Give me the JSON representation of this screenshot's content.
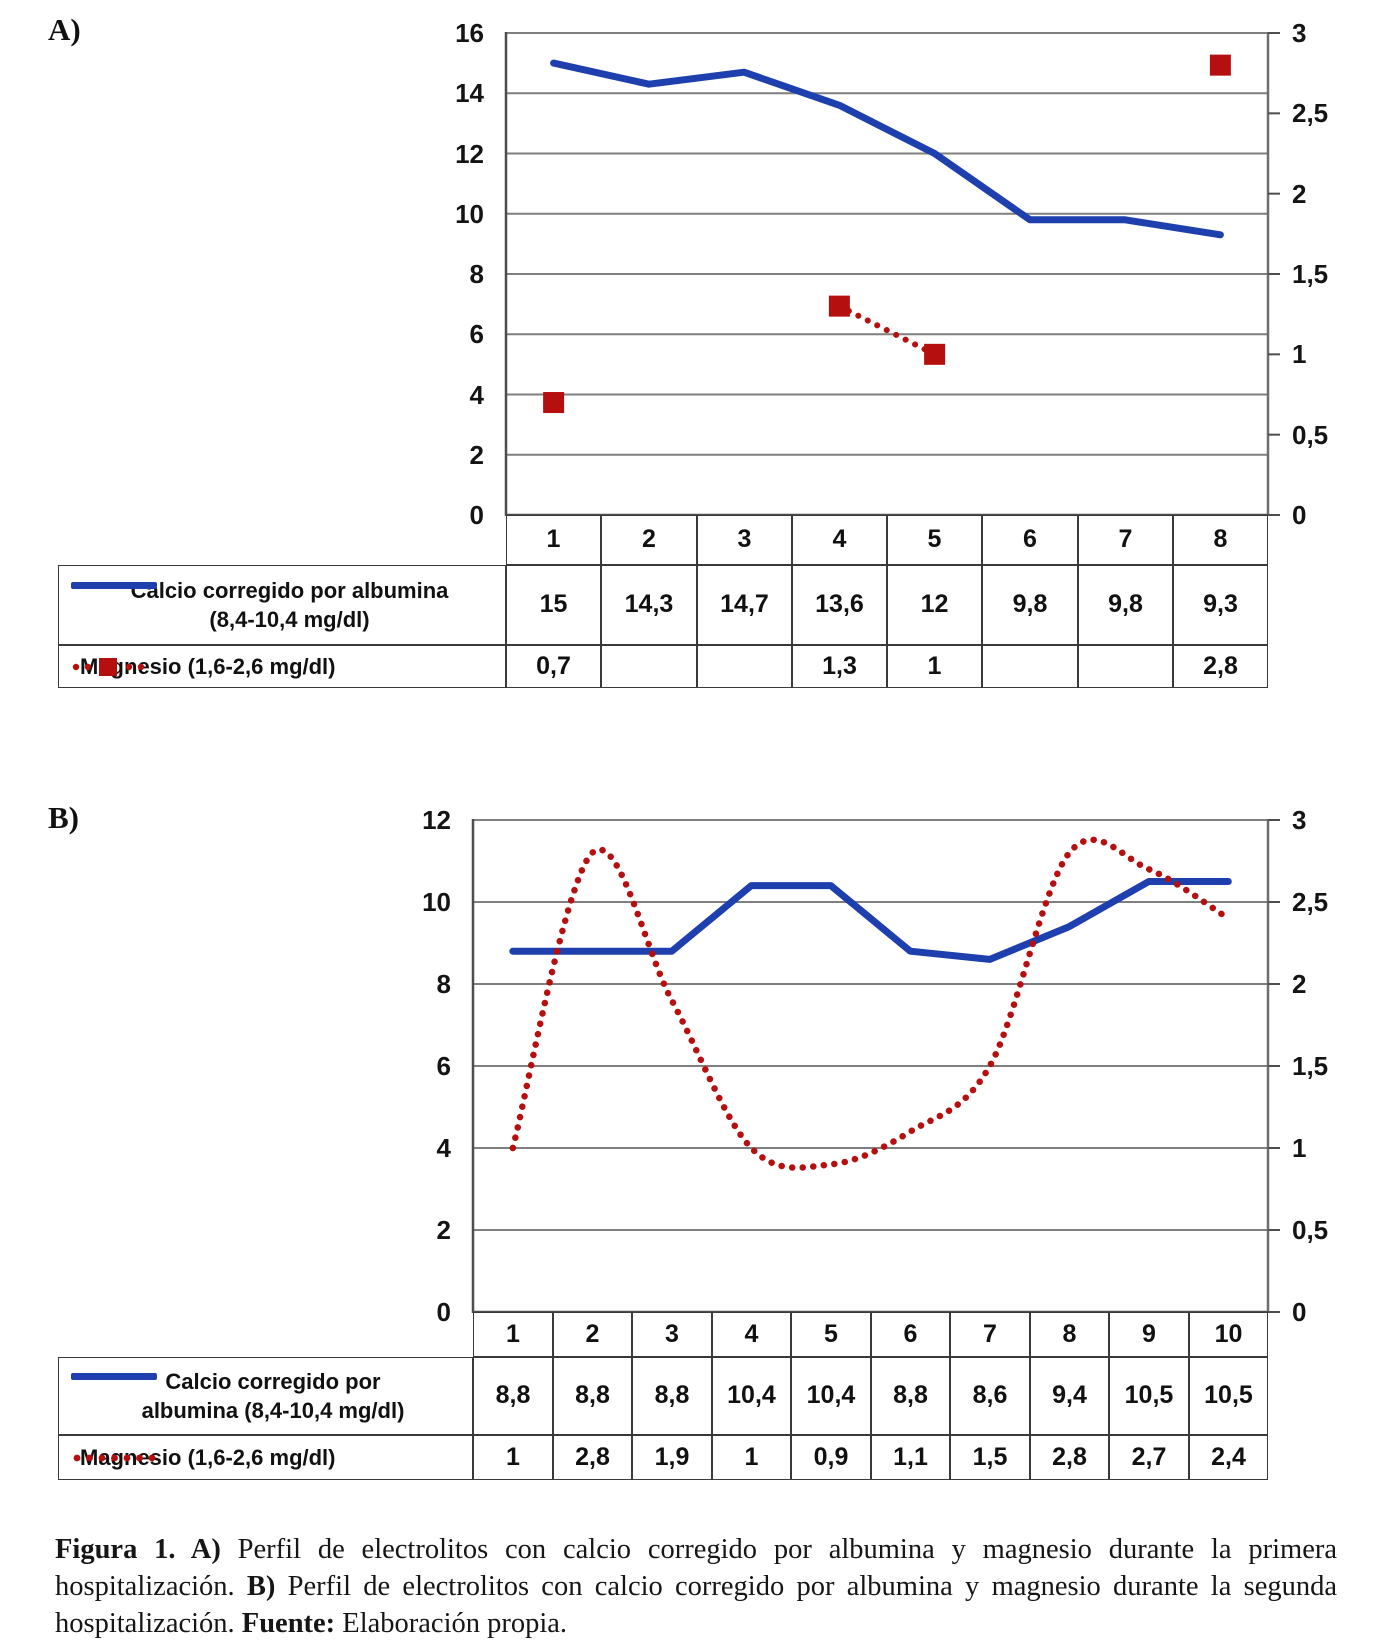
{
  "panels": {
    "a": {
      "label": "A)"
    },
    "b": {
      "label": "B)"
    }
  },
  "caption": {
    "segments": [
      {
        "text": "Figura 1. A)",
        "bold": true
      },
      {
        "text": " Perfil de electrolitos con calcio corregido por albumina y magnesio durante la primera hospitalización. ",
        "bold": false
      },
      {
        "text": "B)",
        "bold": true
      },
      {
        "text": " Perfil de electrolitos con calcio corregido por albumina y magnesio durante la segunda hospitalización. ",
        "bold": false
      },
      {
        "text": "Fuente:",
        "bold": true
      },
      {
        "text": " Elaboración propia.",
        "bold": false
      }
    ]
  },
  "colors": {
    "calcio_blue": "#1e3fae",
    "magnesio_red": "#b50f0f",
    "gridline": "#7f7f7f",
    "axis": "#4d4d4d",
    "table_border": "#3a3a3a"
  },
  "chart_data": [
    {
      "id": "a",
      "type": "line",
      "title": "",
      "categories": [
        "1",
        "2",
        "3",
        "4",
        "5",
        "6",
        "7",
        "8"
      ],
      "left_axis": {
        "min": 0,
        "max": 16,
        "step": 2,
        "labels": [
          "16",
          "14",
          "12",
          "10",
          "8",
          "6",
          "4",
          "2",
          "0"
        ]
      },
      "right_axis": {
        "min": 0,
        "max": 3,
        "step": 0.5,
        "labels": [
          "3",
          "2,5",
          "2",
          "1,5",
          "1",
          "0,5",
          "0"
        ]
      },
      "grid": true,
      "legend_position": "table-left",
      "series": [
        {
          "name": "Calcio corregido por albumina (8,4-10,4 mg/dl)",
          "legend_lines": [
            "Calcio corregido por albumina",
            "(8,4-10,4 mg/dl)"
          ],
          "axis": "left",
          "style": "solid",
          "color": "#1e3fae",
          "values": [
            15,
            14.3,
            14.7,
            13.6,
            12,
            9.8,
            9.8,
            9.3
          ],
          "table_values": [
            "15",
            "14,3",
            "14,7",
            "13,6",
            "12",
            "9,8",
            "9,8",
            "9,3"
          ]
        },
        {
          "name": "Magnesio (1,6-2,6 mg/dl)",
          "legend_lines": [
            "Magnesio (1,6-2,6 mg/dl)"
          ],
          "axis": "right",
          "style": "dotted-square",
          "color": "#b50f0f",
          "values": [
            0.7,
            null,
            null,
            1.3,
            1,
            null,
            null,
            2.8
          ],
          "table_values": [
            "0,7",
            "",
            "",
            "1,3",
            "1",
            "",
            "",
            "2,8"
          ]
        }
      ]
    },
    {
      "id": "b",
      "type": "line",
      "title": "",
      "categories": [
        "1",
        "2",
        "3",
        "4",
        "5",
        "6",
        "7",
        "8",
        "9",
        "10"
      ],
      "left_axis": {
        "min": 0,
        "max": 12,
        "step": 2,
        "labels": [
          "12",
          "10",
          "8",
          "6",
          "4",
          "2",
          "0"
        ]
      },
      "right_axis": {
        "min": 0,
        "max": 3,
        "step": 0.5,
        "labels": [
          "3",
          "2,5",
          "2",
          "1,5",
          "1",
          "0,5",
          "0"
        ]
      },
      "grid": true,
      "legend_position": "table-left",
      "series": [
        {
          "name": "Calcio corregido por albumina (8,4-10,4 mg/dl)",
          "legend_lines": [
            "Calcio corregido por",
            "albumina (8,4-10,4 mg/dl)"
          ],
          "axis": "left",
          "style": "solid",
          "color": "#1e3fae",
          "values": [
            8.8,
            8.8,
            8.8,
            10.4,
            10.4,
            8.8,
            8.6,
            9.4,
            10.5,
            10.5
          ],
          "table_values": [
            "8,8",
            "8,8",
            "8,8",
            "10,4",
            "10,4",
            "8,8",
            "8,6",
            "9,4",
            "10,5",
            "10,5"
          ]
        },
        {
          "name": "Magnesio (1,6-2,6 mg/dl)",
          "legend_lines": [
            "Magnesio (1,6-2,6 mg/dl)"
          ],
          "axis": "right",
          "style": "dotted-smooth",
          "color": "#b50f0f",
          "values": [
            1,
            2.8,
            1.9,
            1,
            0.9,
            1.1,
            1.5,
            2.8,
            2.7,
            2.4
          ],
          "table_values": [
            "1",
            "2,8",
            "1,9",
            "1",
            "0,9",
            "1,1",
            "1,5",
            "2,8",
            "2,7",
            "2,4"
          ]
        }
      ]
    }
  ]
}
